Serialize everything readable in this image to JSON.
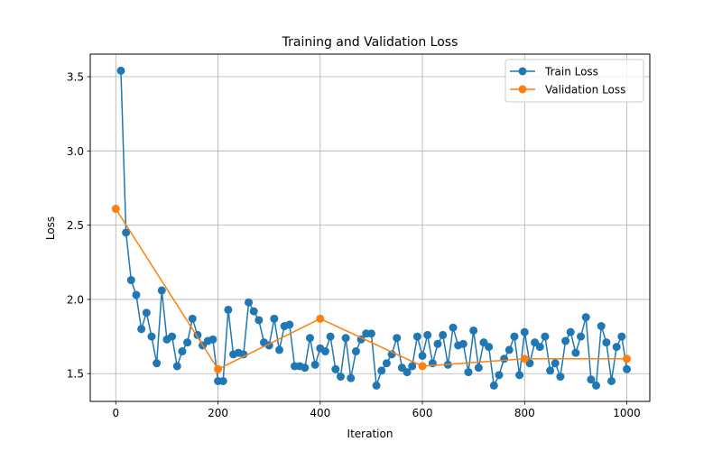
{
  "chart_data": {
    "type": "line",
    "title": "Training and Validation Loss",
    "xlabel": "Iteration",
    "ylabel": "Loss",
    "xlim": [
      -50,
      1045
    ],
    "ylim": [
      1.313,
      3.652
    ],
    "xticks": [
      0,
      200,
      400,
      600,
      800,
      1000
    ],
    "xtick_labels": [
      "0",
      "200",
      "400",
      "600",
      "800",
      "1000"
    ],
    "yticks": [
      1.5,
      2.0,
      2.5,
      3.0,
      3.5
    ],
    "ytick_labels": [
      "1.5",
      "2.0",
      "2.5",
      "3.0",
      "3.5"
    ],
    "grid": true,
    "legend_position": "top-right",
    "series": [
      {
        "name": "Train Loss",
        "color": "#1f77b4",
        "marker": "circle",
        "x": [
          10,
          20,
          30,
          40,
          50,
          60,
          70,
          80,
          90,
          100,
          110,
          120,
          130,
          140,
          150,
          160,
          170,
          180,
          190,
          200,
          210,
          220,
          230,
          240,
          250,
          260,
          270,
          280,
          290,
          300,
          310,
          320,
          330,
          340,
          350,
          360,
          370,
          380,
          390,
          400,
          410,
          420,
          430,
          440,
          450,
          460,
          470,
          480,
          490,
          500,
          510,
          520,
          530,
          540,
          550,
          560,
          570,
          580,
          590,
          600,
          610,
          620,
          630,
          640,
          650,
          660,
          670,
          680,
          690,
          700,
          710,
          720,
          730,
          740,
          750,
          760,
          770,
          780,
          790,
          800,
          810,
          820,
          830,
          840,
          850,
          860,
          870,
          880,
          890,
          900,
          910,
          920,
          930,
          940,
          950,
          960,
          970,
          980,
          990,
          1000
        ],
        "values": [
          3.54,
          2.45,
          2.13,
          2.03,
          1.8,
          1.91,
          1.75,
          1.57,
          2.06,
          1.73,
          1.75,
          1.55,
          1.65,
          1.71,
          1.87,
          1.76,
          1.69,
          1.72,
          1.73,
          1.45,
          1.45,
          1.93,
          1.63,
          1.64,
          1.63,
          1.98,
          1.92,
          1.86,
          1.71,
          1.69,
          1.87,
          1.66,
          1.82,
          1.83,
          1.55,
          1.55,
          1.54,
          1.74,
          1.56,
          1.67,
          1.65,
          1.75,
          1.53,
          1.48,
          1.74,
          1.47,
          1.65,
          1.73,
          1.77,
          1.77,
          1.42,
          1.52,
          1.57,
          1.63,
          1.74,
          1.54,
          1.51,
          1.55,
          1.75,
          1.62,
          1.76,
          1.57,
          1.7,
          1.76,
          1.56,
          1.81,
          1.69,
          1.7,
          1.51,
          1.79,
          1.54,
          1.71,
          1.68,
          1.42,
          1.49,
          1.6,
          1.66,
          1.75,
          1.49,
          1.78,
          1.57,
          1.71,
          1.68,
          1.75,
          1.52,
          1.57,
          1.48,
          1.72,
          1.78,
          1.64,
          1.75,
          1.88,
          1.46,
          1.42,
          1.82,
          1.71,
          1.45,
          1.68,
          1.75,
          1.53
        ]
      },
      {
        "name": "Validation Loss",
        "color": "#ff7f0e",
        "marker": "circle",
        "x": [
          0,
          200,
          400,
          600,
          800,
          1000
        ],
        "values": [
          2.61,
          1.53,
          1.87,
          1.55,
          1.6,
          1.6
        ]
      }
    ]
  }
}
